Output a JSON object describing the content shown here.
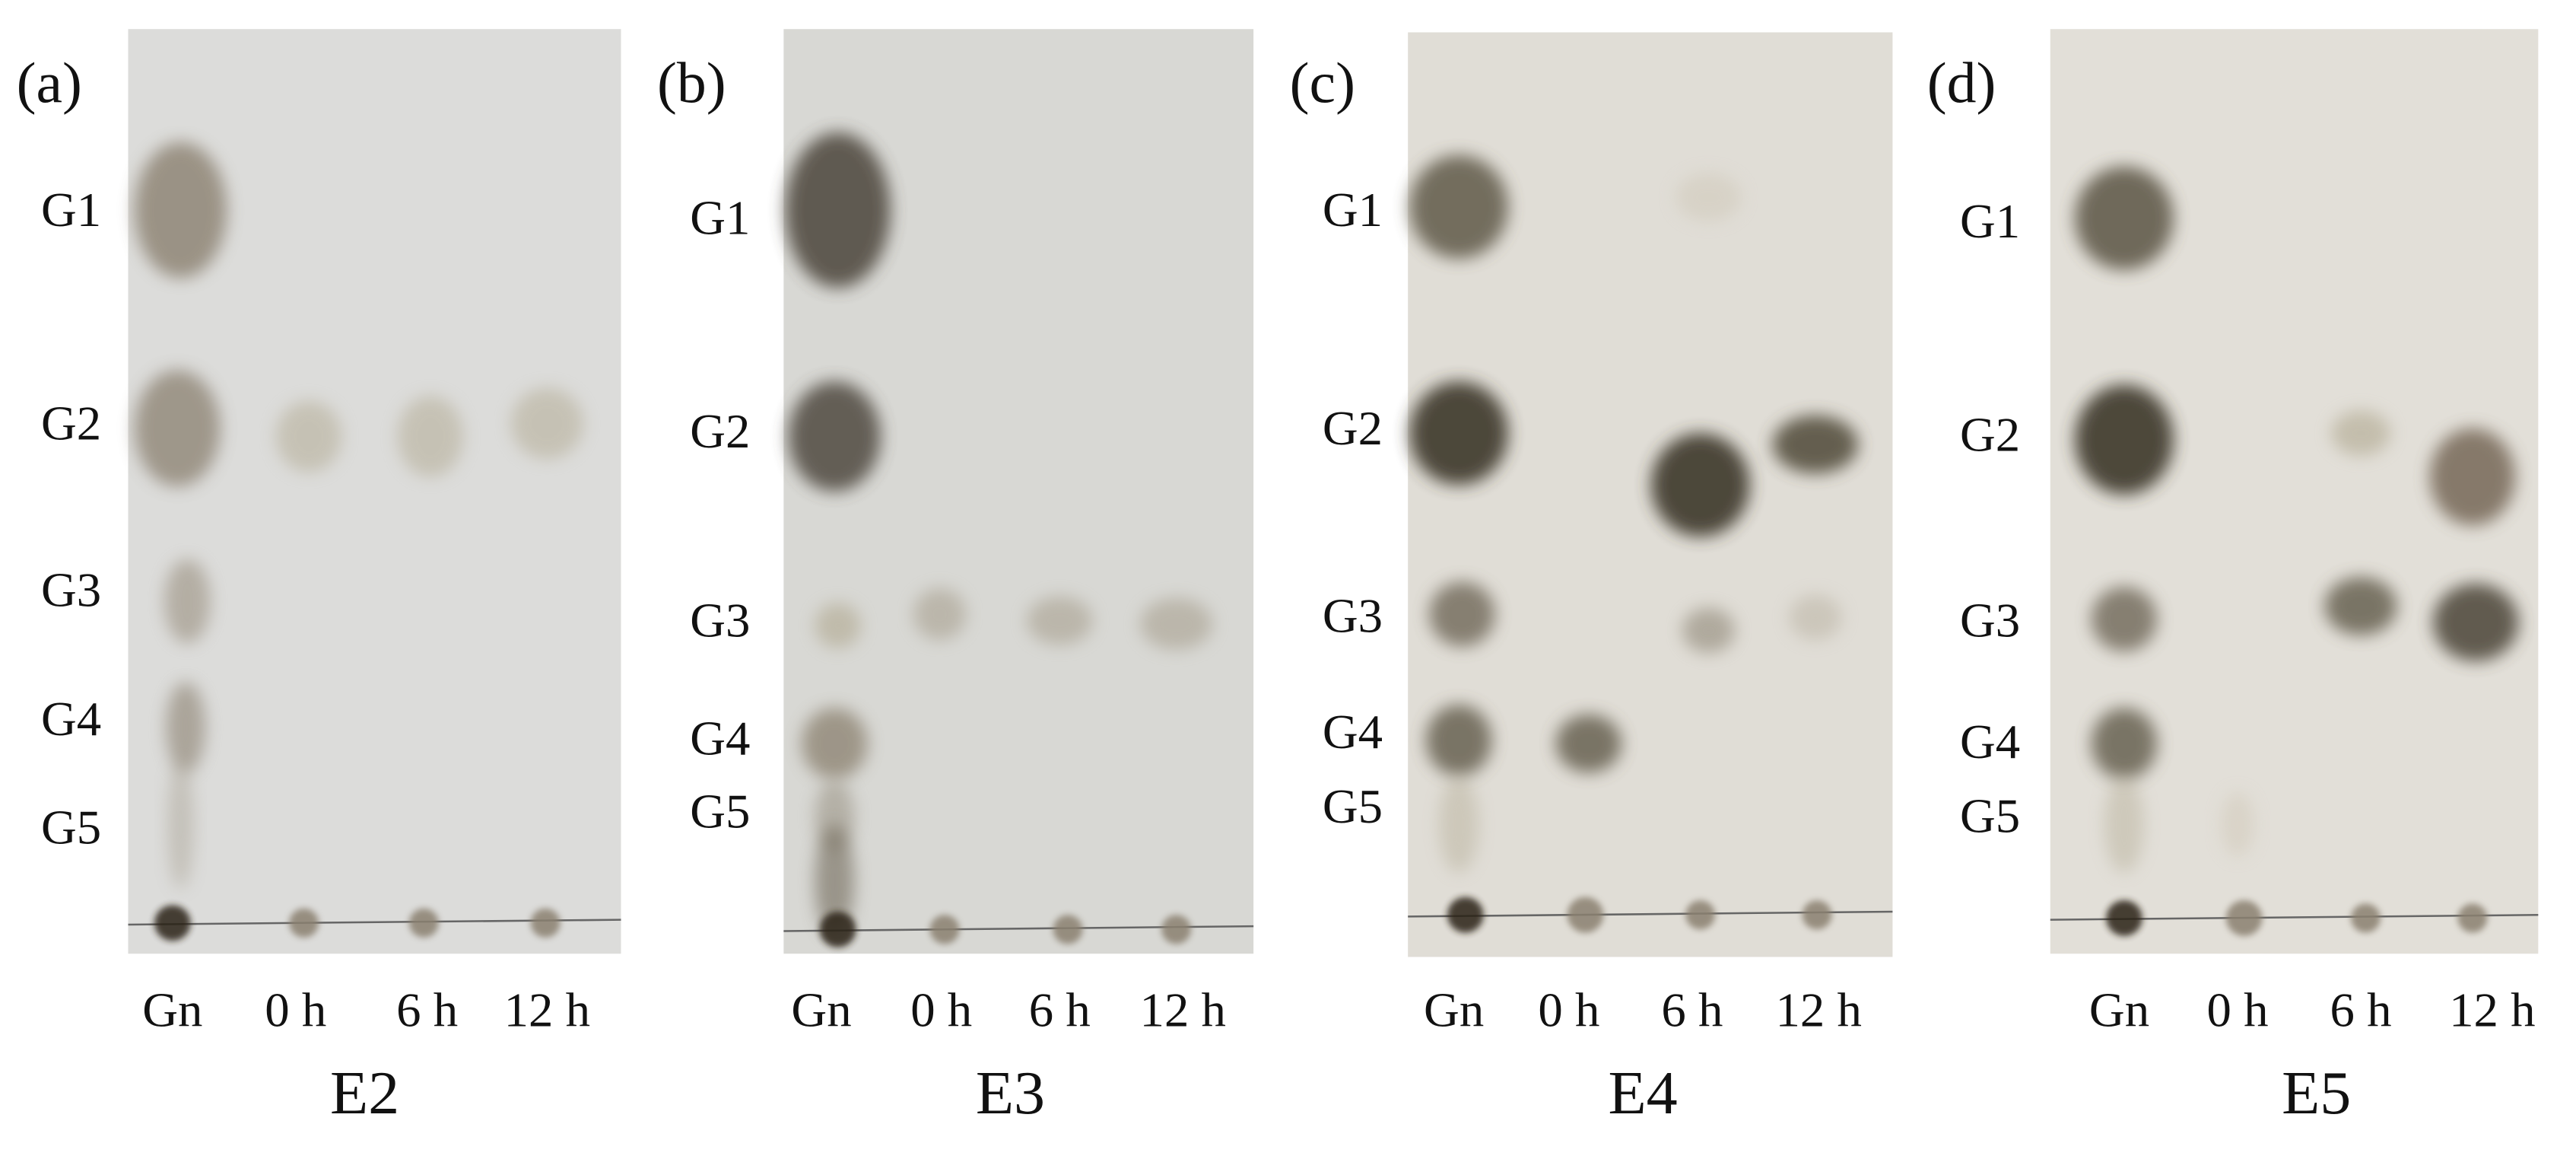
{
  "panels": [
    {
      "label": "(a)",
      "rows": [
        "G1",
        "G2",
        "G3",
        "G4",
        "G5"
      ],
      "lanes": [
        "Gn",
        "0 h",
        "6 h",
        "12 h"
      ],
      "enzyme": "E2"
    },
    {
      "label": "(b)",
      "rows": [
        "G1",
        "G2",
        "G3",
        "G4",
        "G5"
      ],
      "lanes": [
        "Gn",
        "0 h",
        "6 h",
        "12 h"
      ],
      "enzyme": "E3"
    },
    {
      "label": "(c)",
      "rows": [
        "G1",
        "G2",
        "G3",
        "G4",
        "G5"
      ],
      "lanes": [
        "Gn",
        "0 h",
        "6 h",
        "12 h"
      ],
      "enzyme": "E4"
    },
    {
      "label": "(d)",
      "rows": [
        "G1",
        "G2",
        "G3",
        "G4",
        "G5"
      ],
      "lanes": [
        "Gn",
        "0 h",
        "6 h",
        "12 h"
      ],
      "enzyme": "E5"
    }
  ]
}
